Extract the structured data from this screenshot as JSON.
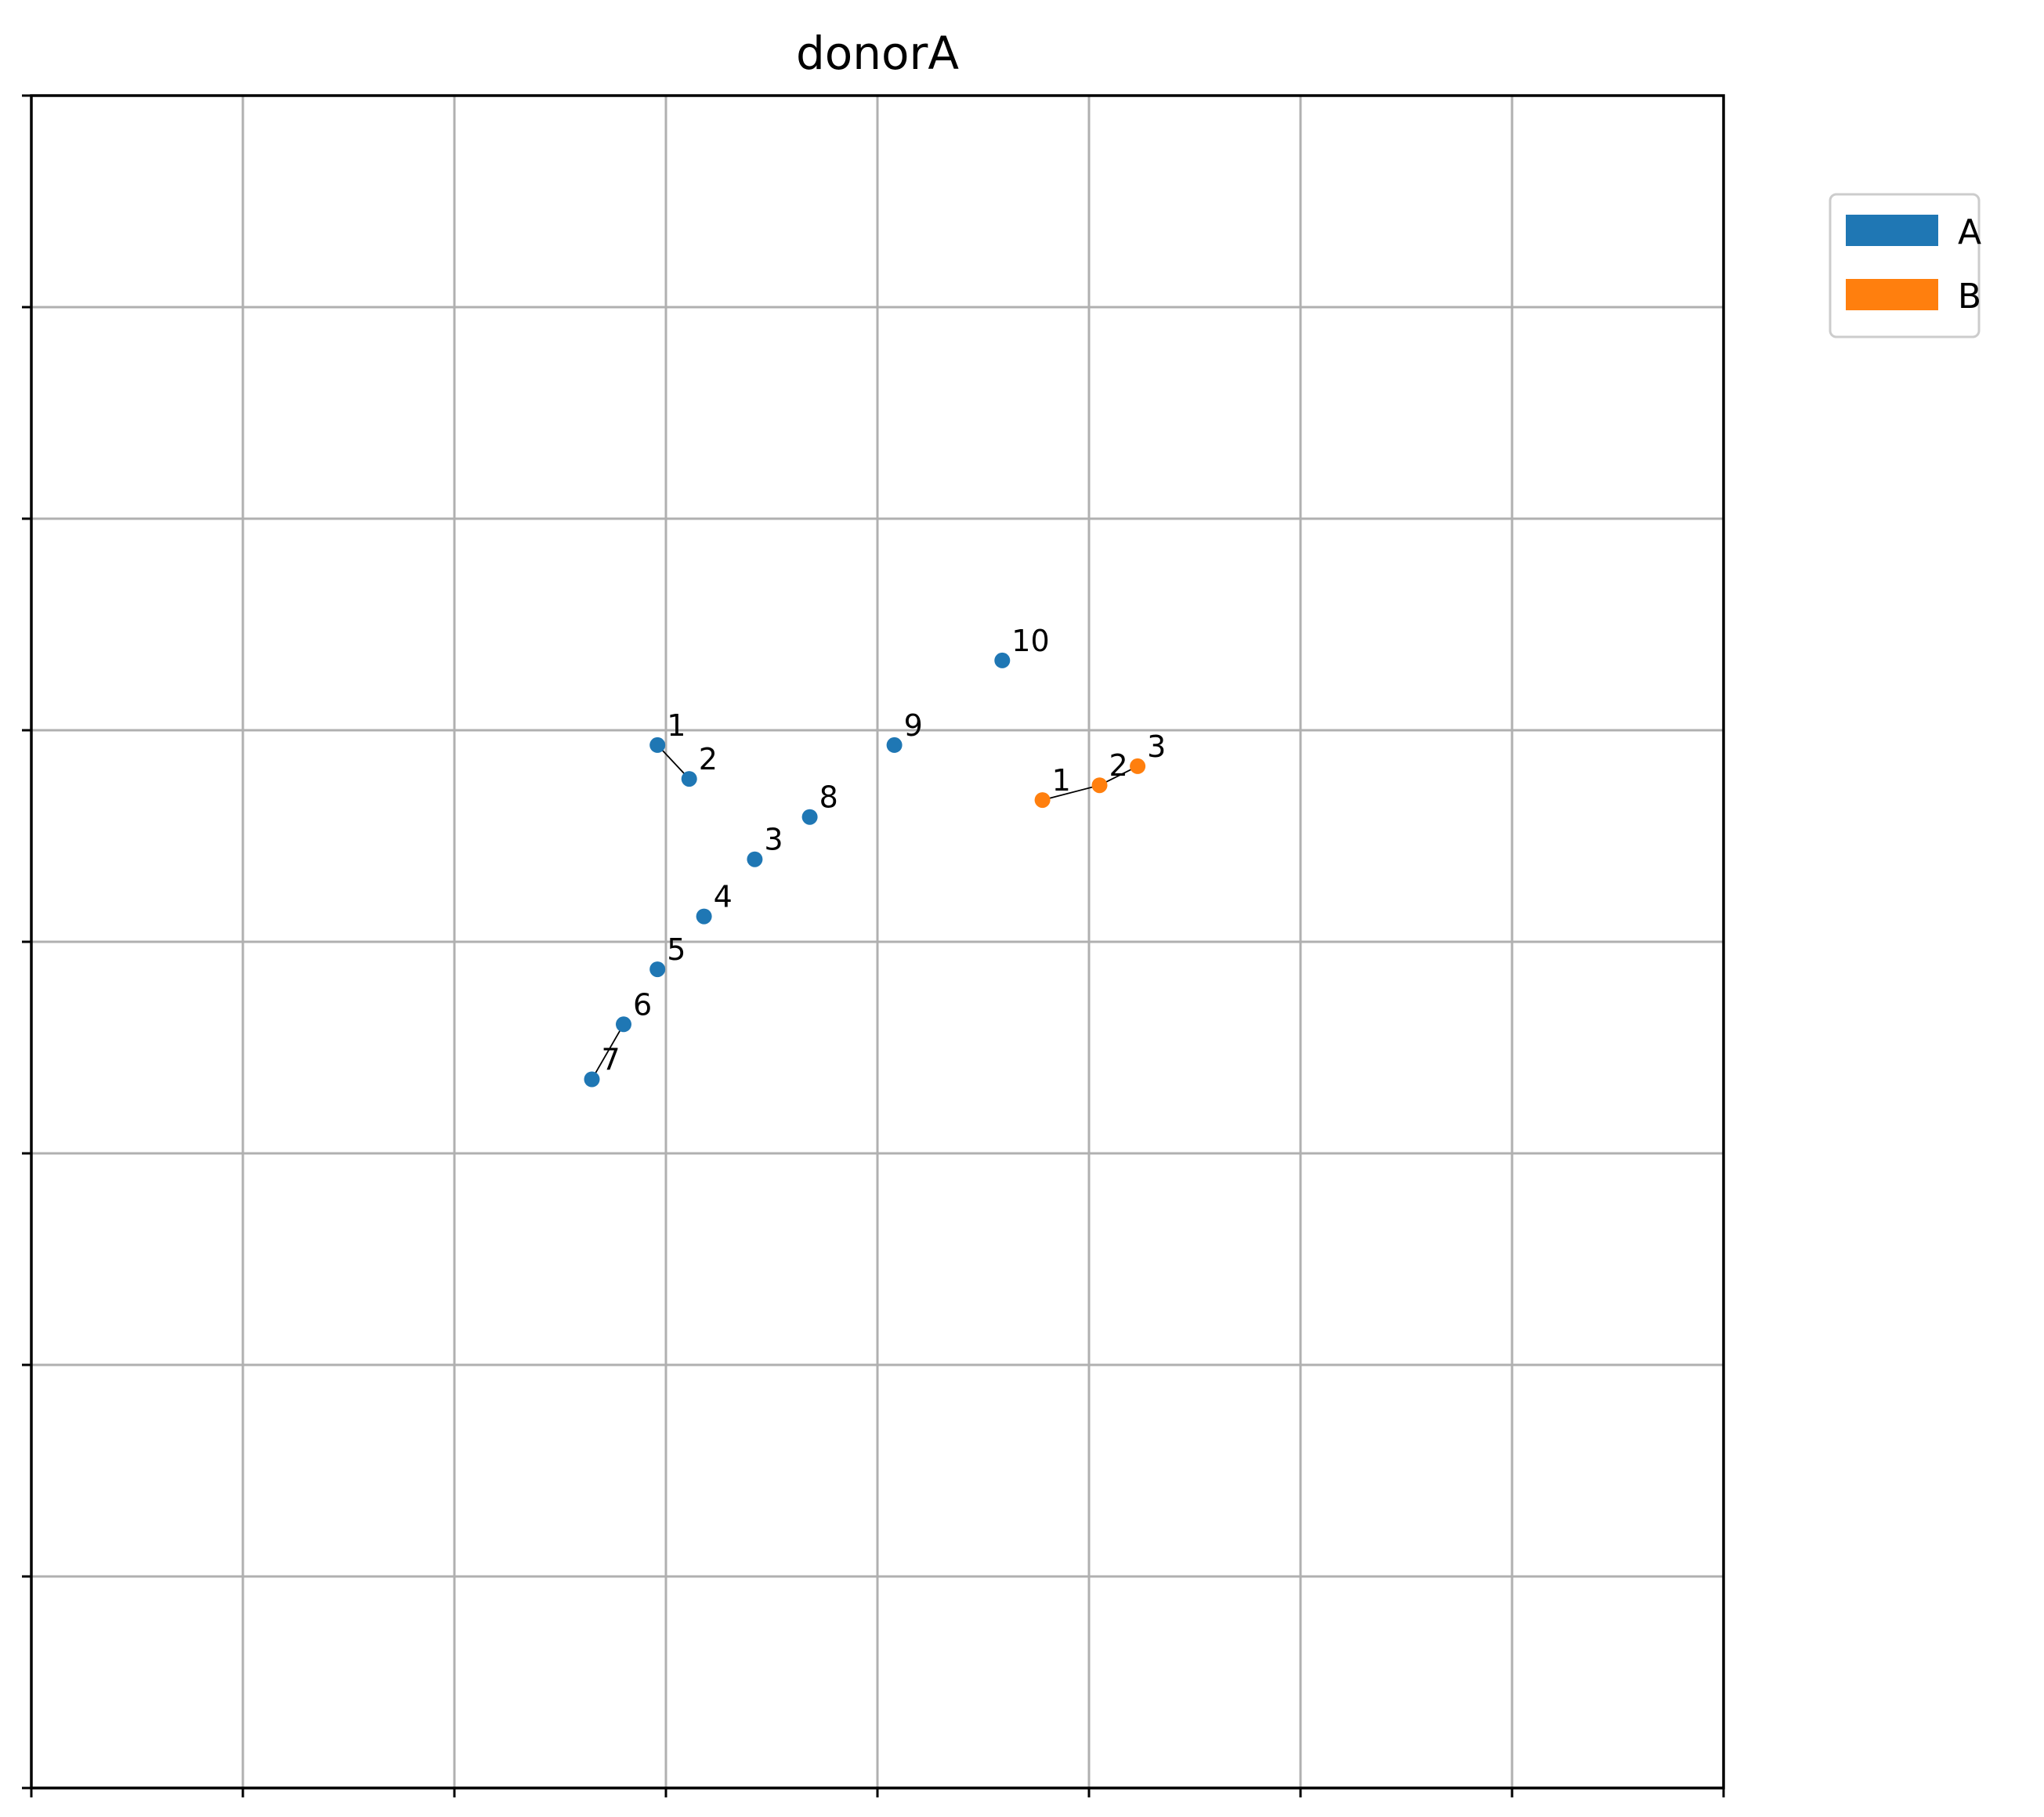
{
  "chart_data": {
    "type": "scatter",
    "title": "donorA",
    "xlabel": "",
    "ylabel": "",
    "xlim": [
      0,
      8
    ],
    "ylim": [
      0,
      8
    ],
    "grid": true,
    "axis_ticks_labeled": false,
    "legend_placement": "outside top-right",
    "series": [
      {
        "name": "A",
        "color": "#1f77b4",
        "points": [
          {
            "label": "1",
            "x": 2.96,
            "y": 4.93
          },
          {
            "label": "2",
            "x": 3.11,
            "y": 4.77
          },
          {
            "label": "3",
            "x": 3.42,
            "y": 4.39
          },
          {
            "label": "4",
            "x": 3.18,
            "y": 4.12
          },
          {
            "label": "5",
            "x": 2.96,
            "y": 3.87
          },
          {
            "label": "6",
            "x": 2.8,
            "y": 3.61
          },
          {
            "label": "7",
            "x": 2.65,
            "y": 3.35
          },
          {
            "label": "8",
            "x": 3.68,
            "y": 4.59
          },
          {
            "label": "9",
            "x": 4.08,
            "y": 4.93
          },
          {
            "label": "10",
            "x": 4.59,
            "y": 5.33
          }
        ],
        "connected_pairs": [
          [
            "1",
            "2"
          ],
          [
            "6",
            "7"
          ]
        ]
      },
      {
        "name": "B",
        "color": "#ff7f0e",
        "points": [
          {
            "label": "1",
            "x": 4.78,
            "y": 4.67
          },
          {
            "label": "2",
            "x": 5.05,
            "y": 4.74
          },
          {
            "label": "3",
            "x": 5.23,
            "y": 4.83
          }
        ],
        "connected_pairs": [
          [
            "1",
            "2"
          ],
          [
            "2",
            "3"
          ]
        ]
      }
    ]
  }
}
